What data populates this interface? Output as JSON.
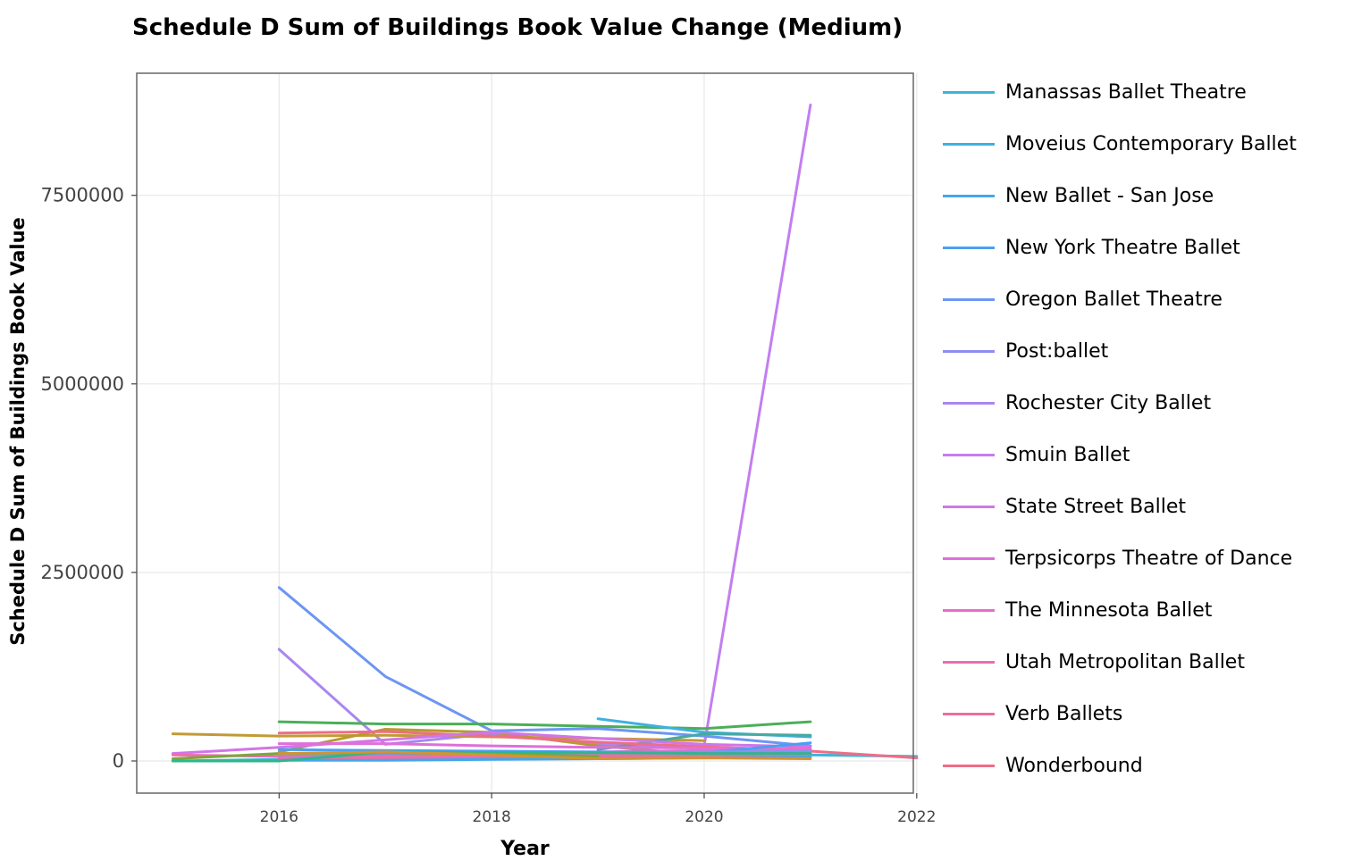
{
  "chart_data": {
    "type": "line",
    "title": "Schedule D Sum of Buildings Book Value Change (Medium)",
    "xlabel": "Year",
    "ylabel": "Schedule D Sum of Buildings Book Value",
    "xlim": [
      2015,
      2022.2
    ],
    "ylim": [
      -450000,
      9000000
    ],
    "x_ticks": [
      2016,
      2018,
      2020,
      2022
    ],
    "y_ticks": [
      0,
      2500000,
      5000000,
      7500000
    ],
    "x_tick_labels": [
      "2016",
      "2018",
      "2020",
      "2022"
    ],
    "y_tick_labels": [
      "0",
      "2500000",
      "5000000",
      "7500000"
    ],
    "grid": true,
    "legend_position": "right",
    "legend": [
      {
        "name": "Manassas Ballet Theatre",
        "color": "#3db5d6"
      },
      {
        "name": "Moveius Contemporary Ballet",
        "color": "#3fb0e2"
      },
      {
        "name": "New Ballet - San Jose",
        "color": "#42a8ea"
      },
      {
        "name": "New York Theatre Ballet",
        "color": "#4c9ff0"
      },
      {
        "name": "Oregon Ballet Theatre",
        "color": "#6c96f2"
      },
      {
        "name": "Post:ballet",
        "color": "#8d8ef3"
      },
      {
        "name": "Rochester City Ballet",
        "color": "#aa86f0"
      },
      {
        "name": "Smuin Ballet",
        "color": "#c27ef1"
      },
      {
        "name": "State Street Ballet",
        "color": "#d275e8"
      },
      {
        "name": "Terpsicorps Theatre of Dance",
        "color": "#df6fd9"
      },
      {
        "name": "The Minnesota Ballet",
        "color": "#e86ec8"
      },
      {
        "name": "Utah Metropolitan Ballet",
        "color": "#ec6db4"
      },
      {
        "name": "Verb Ballets",
        "color": "#ee6d9e"
      },
      {
        "name": "Wonderbound",
        "color": "#ee6e86"
      }
    ],
    "series": [
      {
        "name": "Smuin Ballet",
        "color": "#c27ef1",
        "x": [
          2020,
          2021
        ],
        "y": [
          200000,
          8700000
        ]
      },
      {
        "name": "Oregon Ballet Theatre",
        "color": "#6c96f2",
        "x": [
          2016,
          2017,
          2018,
          2019,
          2020,
          2021
        ],
        "y": [
          2300000,
          1120000,
          400000,
          430000,
          330000,
          200000
        ]
      },
      {
        "name": "Rochester City Ballet",
        "color": "#aa86f0",
        "x": [
          2016,
          2017,
          2018,
          2019,
          2020,
          2021
        ],
        "y": [
          1480000,
          220000,
          360000,
          220000,
          180000,
          150000
        ]
      },
      {
        "color": "#4cae58",
        "x": [
          2016,
          2017,
          2018,
          2019,
          2020,
          2021
        ],
        "y": [
          520000,
          490000,
          490000,
          460000,
          430000,
          520000
        ]
      },
      {
        "color": "#c29a36",
        "x": [
          2015,
          2016,
          2017,
          2018,
          2019,
          2020
        ],
        "y": [
          360000,
          330000,
          340000,
          320000,
          300000,
          270000
        ]
      },
      {
        "color": "#b79a2f",
        "x": [
          2016,
          2017,
          2018,
          2019,
          2020
        ],
        "y": [
          120000,
          420000,
          380000,
          200000,
          80000
        ]
      },
      {
        "name": "Moveius Contemporary Ballet",
        "color": "#3fb0e2",
        "x": [
          2019,
          2020,
          2021
        ],
        "y": [
          560000,
          380000,
          320000
        ]
      },
      {
        "color": "#48a9a0",
        "x": [
          2019,
          2020,
          2021
        ],
        "y": [
          150000,
          360000,
          340000
        ]
      },
      {
        "name": "Manassas Ballet Theatre",
        "color": "#3db5d6",
        "x": [
          2015,
          2016,
          2017,
          2018,
          2019,
          2020,
          2021,
          2022
        ],
        "y": [
          0,
          20000,
          60000,
          90000,
          90000,
          80000,
          80000,
          60000
        ]
      },
      {
        "name": "Wonderbound",
        "color": "#ee6e86",
        "x": [
          2016,
          2017,
          2018,
          2019,
          2020,
          2021,
          2022
        ],
        "y": [
          370000,
          390000,
          330000,
          250000,
          190000,
          130000,
          40000
        ]
      },
      {
        "name": "State Street Ballet",
        "color": "#d275e8",
        "x": [
          2015,
          2016,
          2017,
          2018,
          2019,
          2020,
          2021
        ],
        "y": [
          100000,
          180000,
          280000,
          380000,
          300000,
          220000,
          190000
        ]
      },
      {
        "name": "Terpsicorps Theatre of Dance",
        "color": "#df6fd9",
        "x": [
          2016,
          2017,
          2018,
          2019,
          2020,
          2021
        ],
        "y": [
          230000,
          230000,
          200000,
          180000,
          170000,
          160000
        ]
      },
      {
        "name": "The Minnesota Ballet",
        "color": "#e86ec8",
        "x": [
          2016,
          2017,
          2018,
          2019,
          2020,
          2021
        ],
        "y": [
          50000,
          60000,
          90000,
          120000,
          140000,
          150000
        ]
      },
      {
        "name": "Utah Metropolitan Ballet",
        "color": "#ec6db4",
        "x": [
          2015,
          2016,
          2017,
          2018,
          2019,
          2020,
          2021
        ],
        "y": [
          80000,
          60000,
          50000,
          70000,
          80000,
          90000,
          100000
        ]
      },
      {
        "name": "Verb Ballets",
        "color": "#ee6d9e",
        "x": [
          2016,
          2017,
          2018,
          2019,
          2020,
          2021
        ],
        "y": [
          20000,
          30000,
          40000,
          60000,
          60000,
          70000
        ]
      },
      {
        "name": "New York Theatre Ballet",
        "color": "#4c9ff0",
        "x": [
          2016,
          2017,
          2018,
          2019,
          2020,
          2021
        ],
        "y": [
          150000,
          140000,
          130000,
          120000,
          110000,
          240000
        ]
      },
      {
        "name": "New Ballet - San Jose",
        "color": "#42a8ea",
        "x": [
          2016,
          2017,
          2018,
          2019,
          2020,
          2021
        ],
        "y": [
          10000,
          10000,
          20000,
          30000,
          40000,
          50000
        ]
      },
      {
        "name": "Post:ballet",
        "color": "#8d8ef3",
        "x": [
          2016,
          2017,
          2018,
          2019,
          2020,
          2021
        ],
        "y": [
          80000,
          90000,
          100000,
          110000,
          120000,
          130000
        ]
      },
      {
        "color": "#2fb68f",
        "x": [
          2015,
          2016,
          2017,
          2018,
          2019,
          2020,
          2021
        ],
        "y": [
          0,
          0,
          120000,
          110000,
          110000,
          100000,
          100000
        ]
      },
      {
        "color": "#7aa83a",
        "x": [
          2015,
          2016,
          2017,
          2018,
          2019
        ],
        "y": [
          30000,
          100000,
          110000,
          90000,
          60000
        ]
      },
      {
        "color": "#d19530",
        "x": [
          2016,
          2017,
          2018,
          2019,
          2020,
          2021
        ],
        "y": [
          100000,
          120000,
          80000,
          30000,
          40000,
          30000
        ]
      }
    ]
  }
}
